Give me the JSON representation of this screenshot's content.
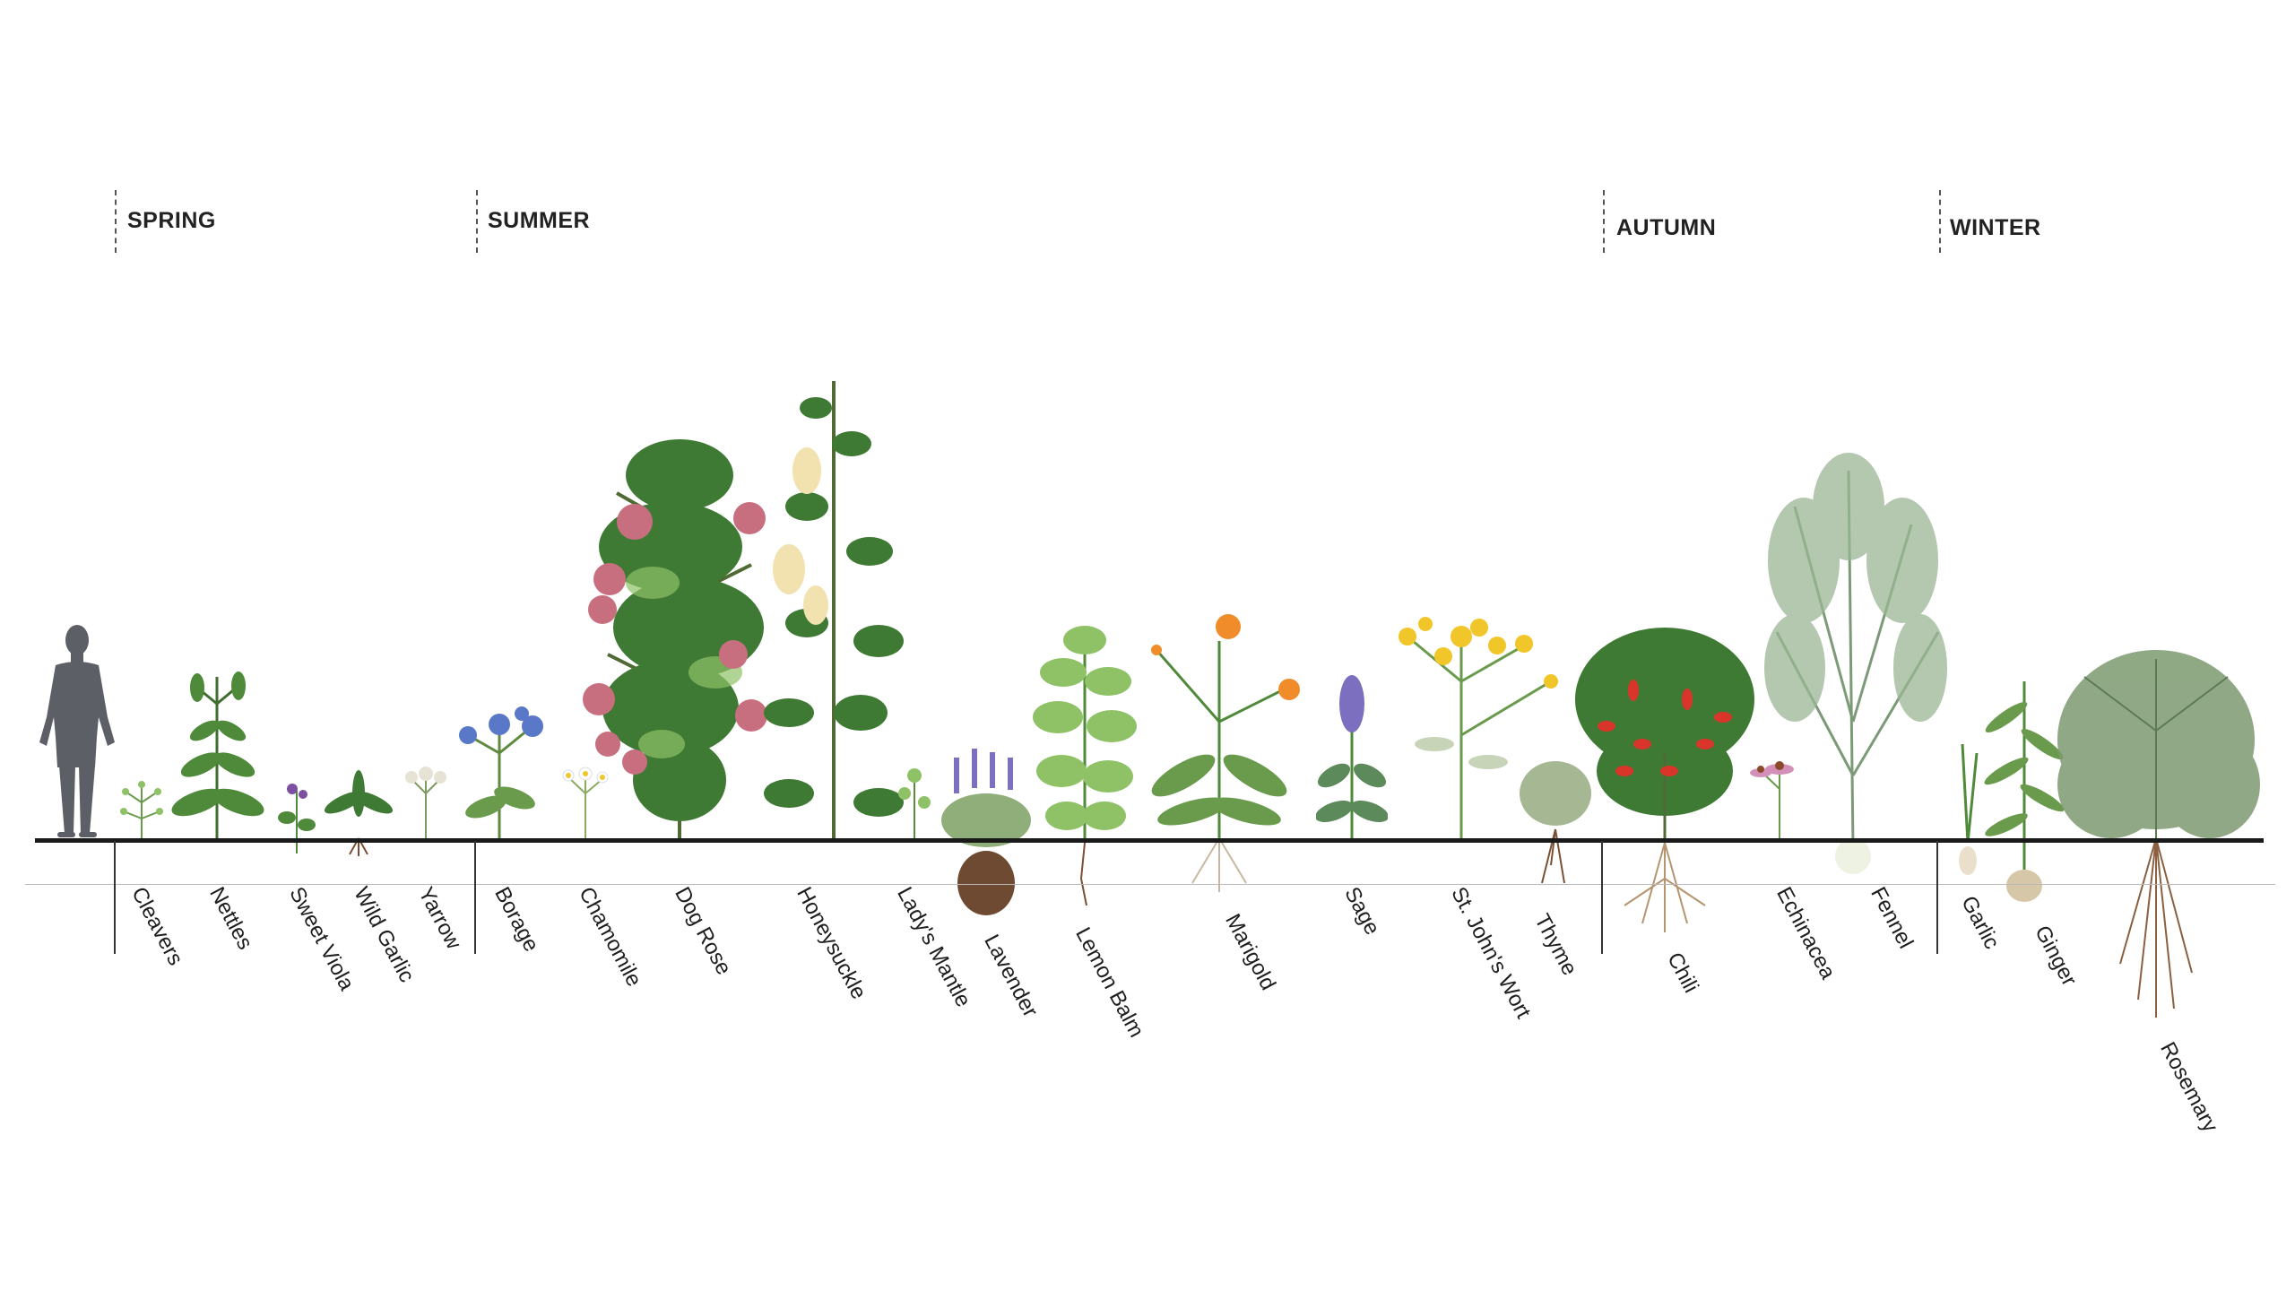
{
  "seasons": [
    {
      "label": "SPRING"
    },
    {
      "label": "SUMMER"
    },
    {
      "label": "AUTUMN"
    },
    {
      "label": "WINTER"
    }
  ],
  "plants": [
    {
      "name": "Cleavers"
    },
    {
      "name": "Nettles"
    },
    {
      "name": "Sweet Viola"
    },
    {
      "name": "Wild Garlic"
    },
    {
      "name": "Yarrow"
    },
    {
      "name": "Borage"
    },
    {
      "name": "Chamomile"
    },
    {
      "name": "Dog Rose"
    },
    {
      "name": "Honeysuckle"
    },
    {
      "name": "Lady's Mantle"
    },
    {
      "name": "Lavender"
    },
    {
      "name": "Lemon Balm"
    },
    {
      "name": "Marigold"
    },
    {
      "name": "Sage"
    },
    {
      "name": "St. John's Wort"
    },
    {
      "name": "Thyme"
    },
    {
      "name": "Chili"
    },
    {
      "name": "Echinacea"
    },
    {
      "name": "Fennel"
    },
    {
      "name": "Garlic"
    },
    {
      "name": "Ginger"
    },
    {
      "name": "Rosemary"
    }
  ],
  "colors": {
    "foliage": "#4f8a3a",
    "foliage_light": "#8fc267",
    "fennel": "#7d9a78",
    "rose": "#c86f7f",
    "borage": "#5a78c8",
    "lavender": "#7d6fbf",
    "marigold": "#f08c2a",
    "st_johns": "#f0c62a",
    "chili": "#d9352a",
    "echinacea": "#d48fb8",
    "root": "#7a5035",
    "silhouette": "#5c5f66"
  }
}
